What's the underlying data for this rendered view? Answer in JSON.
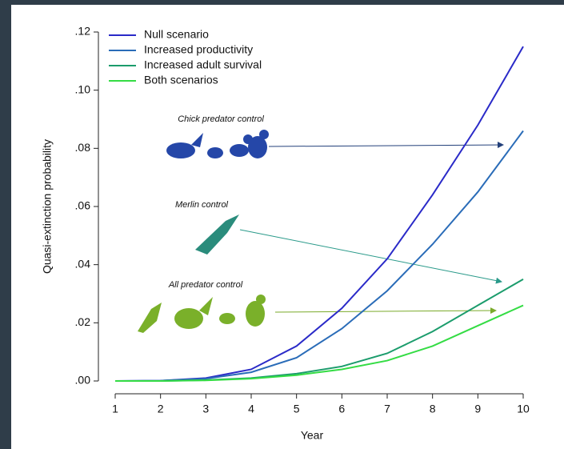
{
  "chart_data": {
    "type": "line",
    "x_label": "Year",
    "y_label": "Quasi-extinction probability",
    "x": [
      1,
      2,
      3,
      4,
      5,
      6,
      7,
      8,
      9,
      10
    ],
    "xlim": [
      1,
      10
    ],
    "xticks": [
      1,
      2,
      3,
      4,
      5,
      6,
      7,
      8,
      9,
      10
    ],
    "ylim": [
      0,
      0.12
    ],
    "yticks": [
      {
        "value": 0,
        "label": ".00"
      },
      {
        "value": 0.02,
        "label": ".02"
      },
      {
        "value": 0.04,
        "label": ".04"
      },
      {
        "value": 0.06,
        "label": ".06"
      },
      {
        "value": 0.08,
        "label": ".08"
      },
      {
        "value": 0.1,
        "label": ".10"
      },
      {
        "value": 0.12,
        "label": ".12"
      }
    ],
    "series": [
      {
        "name": "Null scenario",
        "color": "#2a2ac8",
        "values": [
          0,
          0.0001,
          0.001,
          0.004,
          0.012,
          0.025,
          0.042,
          0.064,
          0.088,
          0.115
        ]
      },
      {
        "name": "Increased productivity",
        "color": "#2a6cb8",
        "values": [
          0,
          0.0001,
          0.0008,
          0.003,
          0.008,
          0.018,
          0.031,
          0.047,
          0.065,
          0.086
        ]
      },
      {
        "name": "Increased adult survival",
        "color": "#1b9c6c",
        "values": [
          0,
          0,
          0.0003,
          0.001,
          0.0025,
          0.005,
          0.0095,
          0.017,
          0.026,
          0.035
        ]
      },
      {
        "name": "Both scenarios",
        "color": "#34dc44",
        "values": [
          0,
          0,
          0.0002,
          0.0008,
          0.002,
          0.004,
          0.007,
          0.012,
          0.019,
          0.026
        ]
      }
    ],
    "annotations": [
      "Chick predator control",
      "Merlin control",
      "All predator control"
    ]
  }
}
